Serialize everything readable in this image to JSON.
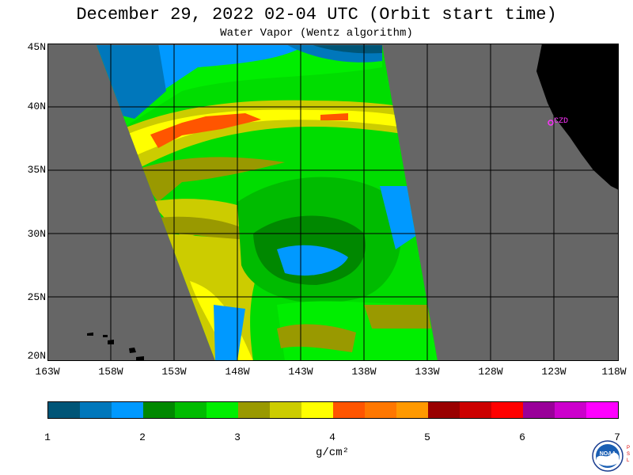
{
  "title": "December 29, 2022  02-04 UTC  (Orbit start time)",
  "subtitle": "Water Vapor (Wentz algorithm)",
  "map": {
    "lat_labels": [
      "45N",
      "40N",
      "35N",
      "30N",
      "25N",
      "20N"
    ],
    "lon_labels": [
      "163W",
      "158W",
      "153W",
      "148W",
      "143W",
      "138W",
      "133W",
      "128W",
      "123W",
      "118W"
    ],
    "station_label": "CZD",
    "colors": {
      "nodata": "#666666",
      "land": "#000000",
      "grid": "#000000",
      "station": "#ff33ff"
    }
  },
  "colorbar": {
    "tick_labels": [
      "1",
      "2",
      "3",
      "4",
      "5",
      "6",
      "7"
    ],
    "units": "g/cm²",
    "colors": [
      "#005577",
      "#0077bb",
      "#0099ff",
      "#008800",
      "#00bb00",
      "#00ee00",
      "#999900",
      "#cccc00",
      "#ffff00",
      "#ff5500",
      "#ff7700",
      "#ff9900",
      "#990000",
      "#cc0000",
      "#ff0000",
      "#990099",
      "#cc00cc",
      "#ff00ff"
    ]
  },
  "logo": {
    "text": "NOAA",
    "side_text": "PSL"
  }
}
